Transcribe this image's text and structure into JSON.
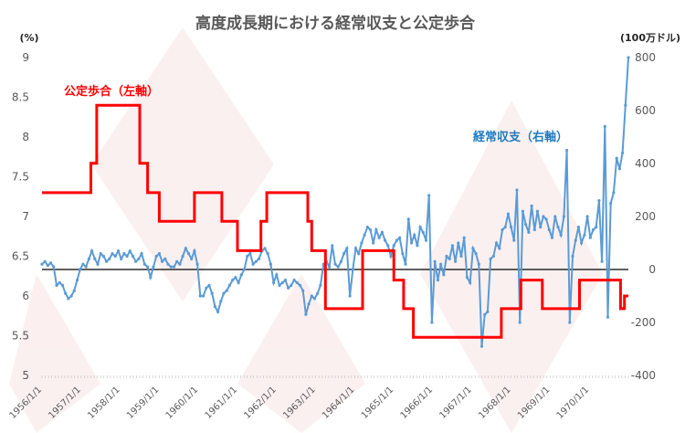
{
  "chart_data": {
    "type": "line",
    "title": "高度成長期における経常収支と公定歩合",
    "left_axis": {
      "unit": "(%)",
      "ylim": [
        5,
        9
      ],
      "ticks": [
        "5",
        "5.5",
        "6",
        "6.5",
        "7",
        "7.5",
        "8",
        "8.5",
        "9"
      ]
    },
    "right_axis": {
      "unit": "(100万ドル)",
      "ylim": [
        -400,
        800
      ],
      "ticks": [
        "-400",
        "-200",
        "0",
        "200",
        "400",
        "600",
        "800"
      ]
    },
    "x_ticks": [
      "1956/1/1",
      "1957/1/1",
      "1958/1/1",
      "1959/1/1",
      "1960/1/1",
      "1961/1/1",
      "1962/1/1",
      "1963/1/1",
      "1964/1/1",
      "1965/1/1",
      "1966/1/1",
      "1967/1/1",
      "1968/1/1",
      "1969/1/1",
      "1970/1/1"
    ],
    "xlim": [
      1956.0,
      1971.0
    ],
    "series": [
      {
        "name": "公定歩合（左軸）",
        "axis": "left",
        "color": "#ff0000",
        "step": true,
        "points": [
          [
            1956.0,
            7.3
          ],
          [
            1957.25,
            7.67
          ],
          [
            1957.4,
            8.4
          ],
          [
            1958.5,
            7.67
          ],
          [
            1958.7,
            7.3
          ],
          [
            1959.0,
            6.94
          ],
          [
            1959.9,
            7.3
          ],
          [
            1960.6,
            6.94
          ],
          [
            1961.0,
            6.57
          ],
          [
            1961.6,
            6.94
          ],
          [
            1961.75,
            7.3
          ],
          [
            1962.8,
            6.94
          ],
          [
            1962.9,
            6.57
          ],
          [
            1963.25,
            5.84
          ],
          [
            1964.2,
            6.57
          ],
          [
            1965.0,
            6.2
          ],
          [
            1965.25,
            5.84
          ],
          [
            1965.5,
            5.48
          ],
          [
            1967.75,
            5.84
          ],
          [
            1968.25,
            6.2
          ],
          [
            1968.8,
            5.84
          ],
          [
            1969.75,
            6.2
          ],
          [
            1970.8,
            5.84
          ],
          [
            1970.9,
            6.0
          ],
          [
            1971.0,
            6.0
          ]
        ]
      },
      {
        "name": "経常収支（右軸）",
        "axis": "right",
        "color": "#5b9bd5",
        "values": [
          20,
          30,
          15,
          25,
          10,
          -60,
          -50,
          -60,
          -90,
          -110,
          -100,
          -80,
          -40,
          0,
          20,
          10,
          40,
          70,
          40,
          20,
          60,
          50,
          30,
          40,
          60,
          50,
          70,
          40,
          60,
          50,
          70,
          50,
          30,
          40,
          60,
          20,
          10,
          -30,
          10,
          50,
          60,
          30,
          40,
          20,
          10,
          10,
          30,
          20,
          50,
          80,
          60,
          40,
          70,
          20,
          -100,
          -100,
          -70,
          -60,
          -90,
          -140,
          -160,
          -120,
          -90,
          -80,
          -60,
          -40,
          -30,
          -50,
          -20,
          0,
          50,
          60,
          20,
          30,
          40,
          70,
          80,
          60,
          20,
          -50,
          -20,
          -60,
          -50,
          -40,
          -70,
          -60,
          -40,
          -50,
          -60,
          -80,
          -170,
          -130,
          -100,
          -110,
          -90,
          -60,
          20,
          30,
          10,
          90,
          20,
          10,
          30,
          60,
          80,
          -100,
          0,
          80,
          60,
          100,
          130,
          160,
          150,
          100,
          150,
          120,
          140,
          110,
          90,
          50,
          90,
          110,
          120,
          60,
          20,
          190,
          100,
          130,
          90,
          160,
          140,
          110,
          280,
          -200,
          30,
          -40,
          20,
          -20,
          50,
          40,
          90,
          30,
          100,
          50,
          120,
          -30,
          -50,
          80,
          60,
          20,
          -290,
          -170,
          -160,
          40,
          50,
          100,
          80,
          150,
          160,
          210,
          160,
          110,
          300,
          -200,
          220,
          170,
          140,
          240,
          150,
          220,
          160,
          200,
          190,
          150,
          120,
          200,
          160,
          130,
          200,
          450,
          -200,
          50,
          110,
          160,
          100,
          130,
          200,
          120,
          150,
          160,
          260,
          30,
          540,
          -180,
          250,
          290,
          420,
          380,
          440,
          620,
          800
        ]
      }
    ],
    "zero_line_right": 0,
    "annotations": [
      "公定歩合（左軸）",
      "経常収支（右軸）"
    ]
  }
}
